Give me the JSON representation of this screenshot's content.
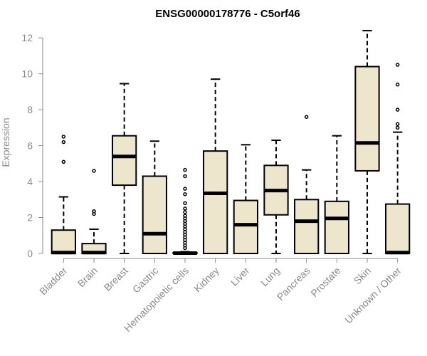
{
  "chart_data": {
    "type": "boxplot",
    "title": "ENSG00000178776 - C5orf46",
    "xlabel": "",
    "ylabel": "Expression",
    "ylim": [
      0,
      12.6
    ],
    "yticks": [
      0,
      2,
      4,
      6,
      8,
      10,
      12
    ],
    "grid": false,
    "colors": {
      "box_fill": "#ede6cc",
      "box_stroke": "#000000",
      "axis": "#8a8a8a",
      "outlier": "#000000"
    },
    "categories": [
      "Bladder",
      "Brain",
      "Breast",
      "Gastric",
      "Hematopoietic cells",
      "Kidney",
      "Liver",
      "Lung",
      "Pancreas",
      "Prostate",
      "Skin",
      "Unknown / Other"
    ],
    "boxes": [
      {
        "category": "Bladder",
        "min": 0,
        "q1": 0,
        "median": 0.05,
        "q3": 1.3,
        "max": 3.15,
        "outliers": [
          5.1,
          6.2,
          6.5
        ]
      },
      {
        "category": "Brain",
        "min": 0,
        "q1": 0,
        "median": 0.05,
        "q3": 0.55,
        "max": 1.35,
        "outliers": [
          2.2,
          2.35,
          4.6
        ]
      },
      {
        "category": "Breast",
        "min": 0,
        "q1": 3.8,
        "median": 5.4,
        "q3": 6.55,
        "max": 9.45,
        "outliers": []
      },
      {
        "category": "Gastric",
        "min": 0,
        "q1": 0,
        "median": 1.1,
        "q3": 4.3,
        "max": 6.25,
        "outliers": []
      },
      {
        "category": "Hematopoietic cells",
        "min": 0,
        "q1": 0,
        "median": 0.02,
        "q3": 0.05,
        "max": 0.1,
        "outliers": [
          0.3,
          0.45,
          0.6,
          0.75,
          0.9,
          1.05,
          1.2,
          1.35,
          1.5,
          1.65,
          1.8,
          1.95,
          2.1,
          2.3,
          2.5,
          2.8,
          3.3,
          3.6,
          4.3,
          4.65
        ]
      },
      {
        "category": "Kidney",
        "min": 0,
        "q1": 0,
        "median": 3.35,
        "q3": 5.7,
        "max": 9.7,
        "outliers": []
      },
      {
        "category": "Liver",
        "min": 0,
        "q1": 0,
        "median": 1.6,
        "q3": 2.95,
        "max": 6.05,
        "outliers": []
      },
      {
        "category": "Lung",
        "min": 0,
        "q1": 2.15,
        "median": 3.5,
        "q3": 4.9,
        "max": 6.3,
        "outliers": []
      },
      {
        "category": "Pancreas",
        "min": 0,
        "q1": 0,
        "median": 1.8,
        "q3": 3.0,
        "max": 4.65,
        "outliers": [
          7.6
        ]
      },
      {
        "category": "Prostate",
        "min": 0,
        "q1": 0,
        "median": 1.95,
        "q3": 2.9,
        "max": 6.55,
        "outliers": []
      },
      {
        "category": "Skin",
        "min": 0,
        "q1": 4.6,
        "median": 6.15,
        "q3": 10.4,
        "max": 12.4,
        "outliers": []
      },
      {
        "category": "Unknown / Other",
        "min": 0,
        "q1": 0,
        "median": 0.05,
        "q3": 2.75,
        "max": 6.75,
        "outliers": [
          7.0,
          7.2,
          8.0,
          9.4,
          10.5
        ]
      }
    ]
  }
}
